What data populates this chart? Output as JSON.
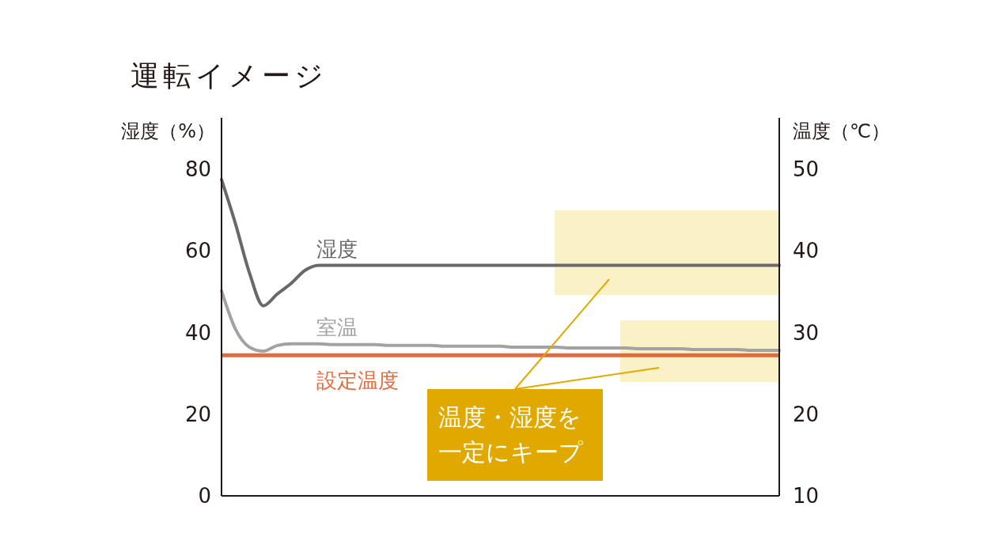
{
  "chart_data": {
    "type": "line",
    "title": "運転イメージ",
    "ylabel": "湿度（%）",
    "y2label": "温度（℃）",
    "categories": [
      null,
      null,
      null,
      null,
      null,
      null,
      null,
      null,
      null,
      null,
      null,
      null,
      null,
      null,
      null,
      null,
      null,
      null,
      null,
      null,
      null,
      null,
      null,
      null,
      null,
      null,
      null,
      null,
      null,
      null,
      null,
      null,
      null,
      null,
      null,
      null,
      null,
      null,
      null,
      null,
      null
    ],
    "series": [
      {
        "name": "湿度",
        "color": "#686868",
        "values": [
          77.4,
          66.6,
          54.6,
          46.5,
          49.4,
          52.0,
          55.2,
          56.4,
          56.4,
          56.4,
          56.4,
          56.4,
          56.4,
          56.4,
          56.4,
          56.4,
          56.4,
          56.4,
          56.4,
          56.4,
          56.4,
          56.4,
          56.4,
          56.4,
          56.4,
          56.4,
          56.4,
          56.4,
          56.4,
          56.4,
          56.4,
          56.4,
          56.4,
          56.4,
          56.4,
          56.4,
          56.4,
          56.4,
          56.4,
          56.4,
          56.4
        ]
      },
      {
        "name": "室温",
        "color": "#a2a2a2",
        "axis": "y2",
        "values": [
          35.1,
          30.4,
          28.2,
          27.7,
          28.4,
          28.6,
          28.6,
          28.6,
          28.5,
          28.5,
          28.5,
          28.5,
          28.4,
          28.4,
          28.4,
          28.4,
          28.3,
          28.3,
          28.3,
          28.3,
          28.3,
          28.2,
          28.2,
          28.2,
          28.2,
          28.1,
          28.1,
          28.1,
          28.1,
          28.1,
          28.0,
          28.0,
          28.0,
          28.0,
          27.9,
          27.9,
          27.9,
          27.9,
          27.8,
          27.8,
          27.8
        ]
      }
    ],
    "ylim": [
      0,
      92.5
    ],
    "yticks": [
      0,
      20,
      40,
      60,
      80
    ],
    "y2lim": [
      10,
      56.25
    ],
    "y2ticks": [
      10,
      20,
      30,
      40,
      50
    ],
    "ref_lines": [
      {
        "axis": "y2",
        "value": 27.2,
        "label": "設定温度",
        "color": "#e5693d"
      }
    ],
    "annotations": [
      "温度・湿度を一定にキープ"
    ],
    "marker": "none",
    "line_style": "solid"
  }
}
